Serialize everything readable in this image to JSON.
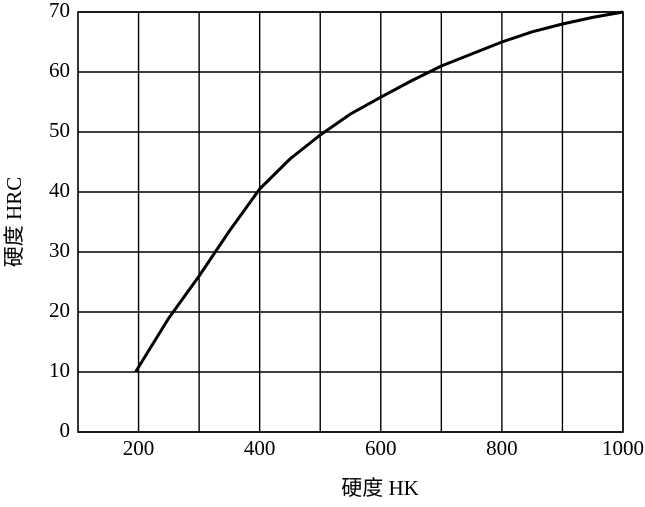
{
  "chart_data": {
    "type": "line",
    "x_label": "硬度  HK",
    "y_label": "硬度  HRC",
    "x": [
      195,
      250,
      300,
      350,
      400,
      450,
      500,
      550,
      600,
      650,
      700,
      750,
      800,
      850,
      900,
      950,
      1000
    ],
    "series": [
      {
        "color": "#000000",
        "values": [
          10,
          19,
          26,
          33.5,
          40.5,
          45.5,
          49.5,
          53,
          55.8,
          58.5,
          61,
          63,
          65,
          66.7,
          68,
          69.1,
          70
        ]
      }
    ],
    "xlim": [
      100,
      1000
    ],
    "xticks": [
      200,
      400,
      600,
      800,
      1000
    ],
    "xgrid": [
      200,
      300,
      400,
      500,
      600,
      700,
      800,
      900,
      1000
    ],
    "ylim": [
      0,
      70
    ],
    "yticks": [
      0,
      10,
      20,
      30,
      40,
      50,
      60,
      70
    ],
    "grid": true
  }
}
